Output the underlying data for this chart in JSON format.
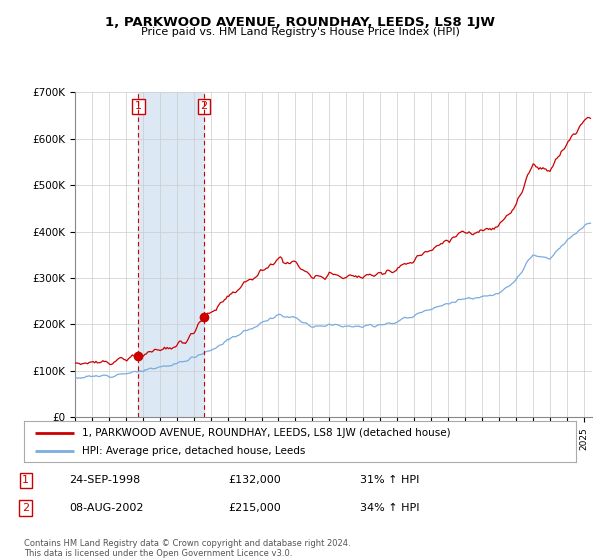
{
  "title": "1, PARKWOOD AVENUE, ROUNDHAY, LEEDS, LS8 1JW",
  "subtitle": "Price paid vs. HM Land Registry's House Price Index (HPI)",
  "ylim": [
    0,
    700000
  ],
  "xlim_start": 1995.0,
  "xlim_end": 2025.5,
  "transaction1": {
    "date": "24-SEP-1998",
    "year": 1998.73,
    "price": 132000,
    "label": "1"
  },
  "transaction2": {
    "date": "08-AUG-2002",
    "year": 2002.61,
    "price": 215000,
    "label": "2"
  },
  "legend_line1": "1, PARKWOOD AVENUE, ROUNDHAY, LEEDS, LS8 1JW (detached house)",
  "legend_line2": "HPI: Average price, detached house, Leeds",
  "footer": "Contains HM Land Registry data © Crown copyright and database right 2024.\nThis data is licensed under the Open Government Licence v3.0.",
  "red_color": "#cc0000",
  "blue_color": "#7aace0",
  "shade_color": "#dce9f5",
  "background_color": "#ffffff",
  "grid_color": "#cccccc",
  "table_row1": [
    "1",
    "24-SEP-1998",
    "£132,000",
    "31% ↑ HPI"
  ],
  "table_row2": [
    "2",
    "08-AUG-2002",
    "£215,000",
    "34% ↑ HPI"
  ]
}
